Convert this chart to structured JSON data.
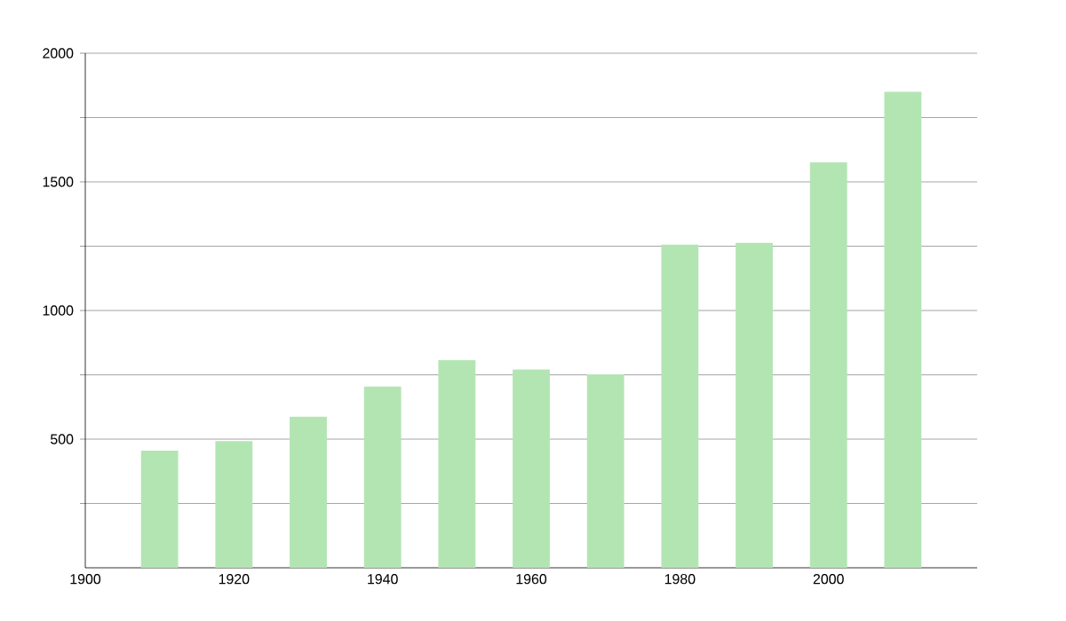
{
  "chart_data": {
    "type": "bar",
    "x": [
      1910,
      1920,
      1930,
      1940,
      1950,
      1960,
      1970,
      1980,
      1990,
      2000,
      2010
    ],
    "values": [
      455,
      492,
      587,
      704,
      807,
      771,
      752,
      1256,
      1263,
      1576,
      1850
    ],
    "color": "#b3e5b3",
    "xlim": [
      1900,
      2020
    ],
    "xticks": [
      1900,
      1920,
      1940,
      1960,
      1980,
      2000
    ],
    "ylim": [
      0,
      2000
    ],
    "yticks": [
      {
        "value": 250,
        "label": null
      },
      500,
      {
        "value": 750,
        "label": null
      },
      1000,
      {
        "value": 1250,
        "label": null
      },
      1500,
      {
        "value": 1750,
        "label": null
      },
      2000
    ],
    "grid": "y"
  }
}
